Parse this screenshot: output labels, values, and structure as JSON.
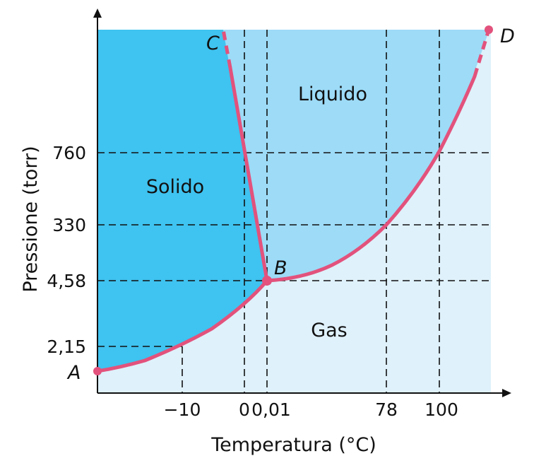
{
  "chart_data": {
    "type": "phase-diagram",
    "xlabel": "Temperatura (°C)",
    "ylabel": "Pressione (torr)",
    "x_ticks": [
      "−10",
      "0",
      "0,01",
      "78",
      "100"
    ],
    "y_ticks": [
      "2,15",
      "4,58",
      "330",
      "760"
    ],
    "regions": {
      "solid": "Solido",
      "liquid": "Liquido",
      "gas": "Gas"
    },
    "points": {
      "A": "A",
      "B": "B",
      "C": "C",
      "D": "D"
    },
    "reference_points": [
      {
        "temperature": -10,
        "pressure": 2.15
      },
      {
        "temperature": 0,
        "pressure": 760
      },
      {
        "temperature": 0.01,
        "pressure": 4.58
      },
      {
        "temperature": 78,
        "pressure": 330
      },
      {
        "temperature": 100,
        "pressure": 760
      }
    ],
    "triple_point": {
      "label": "B",
      "temperature": 0.01,
      "pressure": 4.58
    },
    "colors": {
      "solid": "#3fc3f0",
      "liquid": "#9ddbf7",
      "gas": "#dff1fb",
      "curve": "#e2527c",
      "grid": "#111111"
    }
  }
}
